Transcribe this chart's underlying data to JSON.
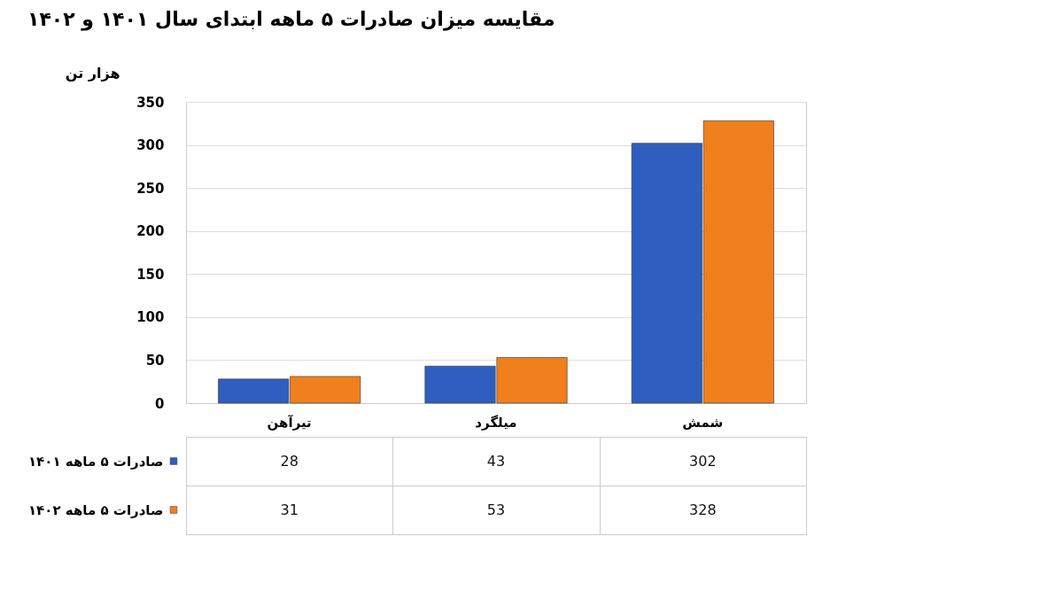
{
  "chart_data": {
    "type": "bar",
    "title": "مقایسه میزان صادرات ۵ ماهه ابتدای سال ۱۴۰۱ و ۱۴۰۲",
    "ylabel": "هزار تن",
    "categories": [
      "تیرآهن",
      "میلگرد",
      "شمش"
    ],
    "series": [
      {
        "name": "صادرات ۵ ماهه ۱۴۰۱",
        "color": "#2e5fc0",
        "values": [
          28,
          43,
          302
        ]
      },
      {
        "name": "صادرات ۵ ماهه ۱۴۰۲",
        "color": "#f07f1e",
        "values": [
          31,
          53,
          328
        ]
      }
    ],
    "ylim": [
      0,
      350
    ],
    "yticks": [
      0,
      50,
      100,
      150,
      200,
      250,
      300,
      350
    ],
    "grid": "y",
    "legend": "bottom",
    "data_labels": true
  }
}
